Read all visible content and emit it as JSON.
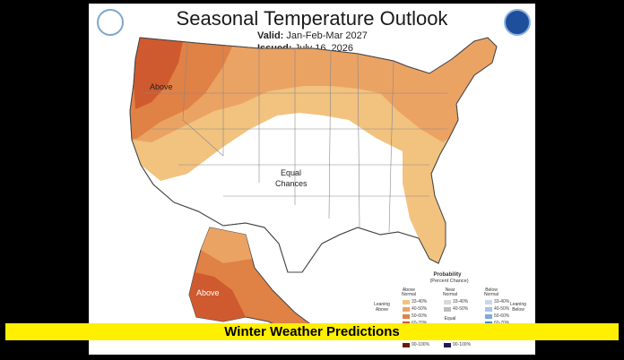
{
  "title": "Seasonal Temperature Outlook",
  "valid_label": "Valid:",
  "valid_value": "Jan-Feb-Mar 2027",
  "issued_label": "Issued:",
  "issued_value": "July 16, 2026",
  "regions": {
    "above_conus": "Above",
    "equal_chances_1": "Equal",
    "equal_chances_2": "Chances",
    "above_alaska": "Above"
  },
  "legend": {
    "title_1": "Probability",
    "title_2": "(Percent Chance)",
    "col_above_1": "Above",
    "col_above_2": "Normal",
    "col_near_1": "Near",
    "col_near_2": "Normal",
    "col_below_1": "Below",
    "col_below_2": "Normal",
    "leaning_above_1": "Leaning",
    "leaning_above_2": "Above",
    "leaning_below_1": "Leaning",
    "leaning_below_2": "Below",
    "equal_1": "Equal",
    "ranges": [
      "33-40%",
      "40-50%",
      "50-60%",
      "60-70%"
    ],
    "top_range": "90-100%",
    "above_colors": [
      "#f2c27f",
      "#eba364",
      "#e08145",
      "#cf5a2f"
    ],
    "near_colors": [
      "#d9d9d9",
      "#bdbdbd",
      "#9e9e9e"
    ],
    "below_colors": [
      "#c9d6ee",
      "#a8c4e6",
      "#7ea9d9",
      "#4b86c7"
    ],
    "top_above_color": "#6b1a0a",
    "top_below_color": "#1c1c5a"
  },
  "banner": "Winter Weather Predictions",
  "colors": {
    "above_33_40": "#f2c27f",
    "above_40_50": "#eba364",
    "above_50_60": "#e08145",
    "above_60_70": "#cf5a2f",
    "banner_yellow": "#ffef00"
  }
}
